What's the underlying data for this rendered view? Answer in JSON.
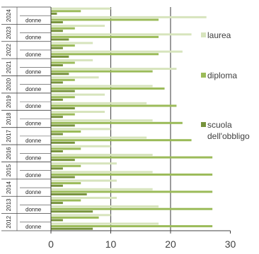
{
  "chart_data": {
    "type": "bar",
    "orientation": "horizontal",
    "title": "",
    "xlabel": "",
    "ylabel": "",
    "xlim": [
      0,
      30
    ],
    "x_ticks": [
      0,
      10,
      20,
      30
    ],
    "grid": "vertical lines at 10 and 20",
    "legend_position": "right",
    "years": [
      "2024",
      "2023",
      "2022",
      "2021",
      "2020",
      "2019",
      "2018",
      "2017",
      "2016",
      "2015",
      "2014",
      "2013",
      "2012"
    ],
    "sub_label": "donne",
    "series": [
      {
        "name": "laurea",
        "color": "#d7e4bd",
        "values_first": [
          10,
          9,
          7,
          7,
          8,
          9,
          9,
          10,
          10,
          11,
          11,
          11,
          10
        ],
        "values_donne": [
          26,
          23.5,
          22,
          21,
          17,
          16,
          17,
          16,
          17,
          17,
          17,
          18,
          18
        ]
      },
      {
        "name": "diploma",
        "color": "#9bbb59",
        "values_first": [
          5,
          4,
          4,
          4,
          4,
          4,
          4,
          5,
          5,
          5,
          5,
          5,
          8
        ],
        "values_donne": [
          18,
          18,
          18,
          17,
          19,
          21,
          22,
          23.5,
          27,
          27,
          27,
          27,
          27
        ]
      },
      {
        "name": "scuola dell'obbligo",
        "color": "#77933c",
        "values_first": [
          1,
          2,
          2,
          2,
          2,
          2,
          2,
          2,
          2,
          2,
          2,
          2,
          2
        ],
        "values_donne": [
          2,
          3,
          3,
          3,
          4,
          4,
          4,
          4,
          4,
          4,
          6,
          7,
          7
        ]
      }
    ],
    "legend": {
      "laurea": "laurea",
      "diploma": "diploma",
      "obbligo_line1": "scuola",
      "obbligo_line2": "dell'obbligo"
    }
  }
}
